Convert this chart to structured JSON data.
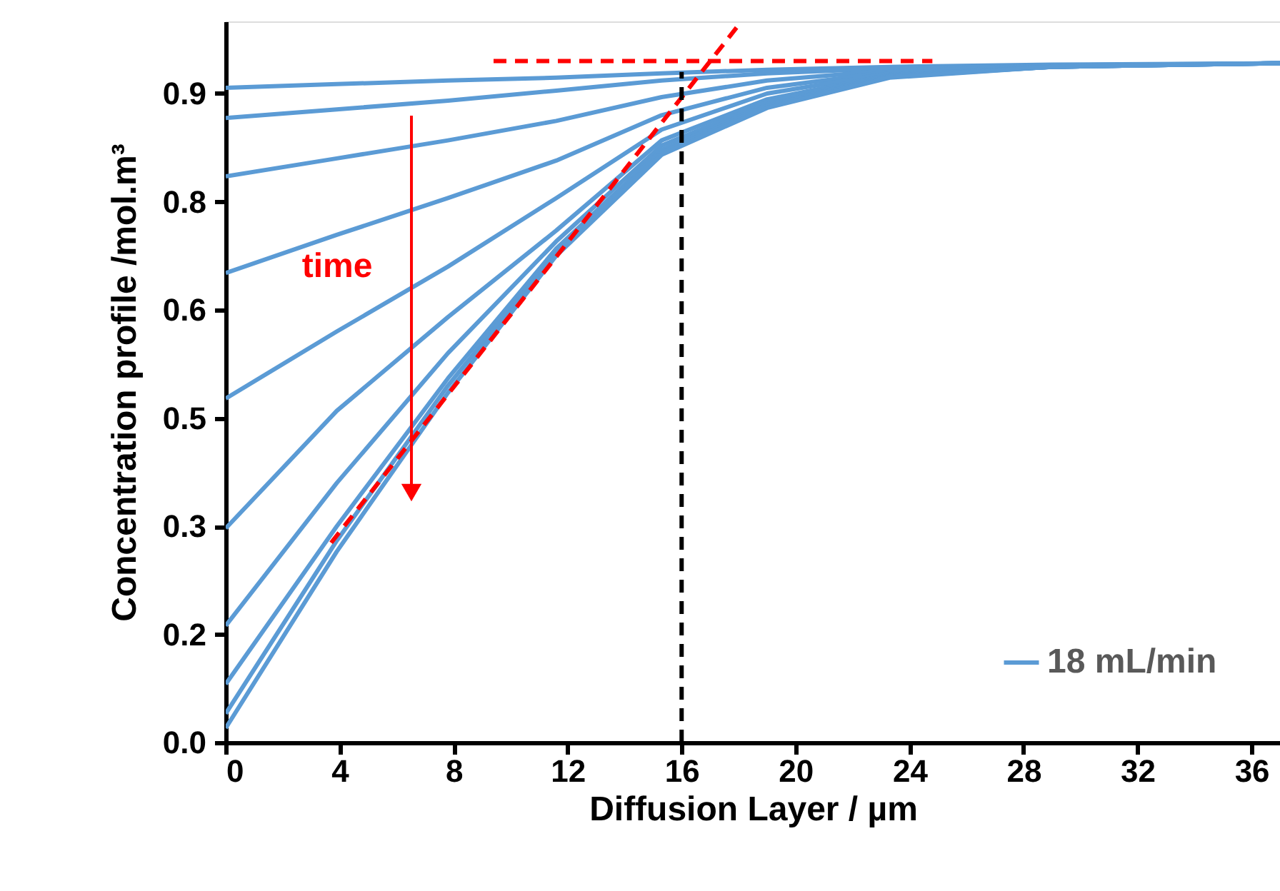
{
  "chart_data": {
    "type": "line",
    "xlabel": "Diffusion Layer / µm",
    "ylabel": "Concentration profile /mol.m³",
    "xlim": [
      0,
      37
    ],
    "ylim": [
      0,
      1.0
    ],
    "xticks": [
      0,
      4,
      8,
      12,
      16,
      20,
      24,
      28,
      32,
      36
    ],
    "yticks": [
      {
        "value": 0,
        "label": "0.0"
      },
      {
        "value": 0.15,
        "label": "0.2"
      },
      {
        "value": 0.3,
        "label": "0.3"
      },
      {
        "value": 0.45,
        "label": "0.5"
      },
      {
        "value": 0.6,
        "label": "0.6"
      },
      {
        "value": 0.75,
        "label": "0.8"
      },
      {
        "value": 0.9,
        "label": "0.9"
      }
    ],
    "x": [
      0,
      3.9,
      7.8,
      11.6,
      15.3,
      19,
      23.3,
      29,
      37
    ],
    "grid": false,
    "legend": "bottom right",
    "marker": "none",
    "series": [
      {
        "name": "18 mL/min",
        "color": "#5b9bd5",
        "values": [
          0.908,
          0.913,
          0.918,
          0.922,
          0.928,
          0.933,
          0.937,
          0.94,
          0.942
        ]
      },
      {
        "color": "#5b9bd5",
        "values": [
          0.866,
          0.878,
          0.89,
          0.904,
          0.918,
          0.928,
          0.935,
          0.939,
          0.942
        ]
      },
      {
        "color": "#5b9bd5",
        "values": [
          0.785,
          0.81,
          0.835,
          0.862,
          0.895,
          0.918,
          0.932,
          0.938,
          0.942
        ]
      },
      {
        "color": "#5b9bd5",
        "values": [
          0.651,
          0.704,
          0.755,
          0.807,
          0.87,
          0.908,
          0.93,
          0.938,
          0.942
        ]
      },
      {
        "color": "#5b9bd5",
        "values": [
          0.477,
          0.57,
          0.66,
          0.755,
          0.85,
          0.9,
          0.928,
          0.937,
          0.942
        ]
      },
      {
        "color": "#5b9bd5",
        "values": [
          0.297,
          0.46,
          0.59,
          0.71,
          0.835,
          0.892,
          0.926,
          0.937,
          0.942
        ]
      },
      {
        "color": "#5b9bd5",
        "values": [
          0.162,
          0.36,
          0.54,
          0.695,
          0.828,
          0.888,
          0.925,
          0.937,
          0.942
        ]
      },
      {
        "color": "#5b9bd5",
        "values": [
          0.081,
          0.3,
          0.505,
          0.685,
          0.822,
          0.885,
          0.924,
          0.937,
          0.942
        ]
      },
      {
        "color": "#5b9bd5",
        "values": [
          0.04,
          0.28,
          0.495,
          0.68,
          0.818,
          0.883,
          0.923,
          0.937,
          0.942
        ]
      },
      {
        "color": "#5b9bd5",
        "values": [
          0.02,
          0.265,
          0.485,
          0.675,
          0.815,
          0.88,
          0.922,
          0.937,
          0.942
        ]
      },
      {
        "type": "line",
        "color": "#ff0000",
        "line_style": "dashed",
        "x": [
          3.7,
          18.0
        ],
        "values": [
          0.277,
          0.995
        ]
      },
      {
        "type": "line",
        "color": "#ff0000",
        "line_style": "dashed",
        "x": [
          9.4,
          24.8
        ],
        "values": [
          0.945,
          0.945
        ]
      },
      {
        "type": "line",
        "color": "#000000",
        "line_style": "dashed",
        "x": [
          16,
          16
        ],
        "values": [
          0,
          0.93
        ]
      }
    ],
    "annotations": [
      "time"
    ]
  }
}
